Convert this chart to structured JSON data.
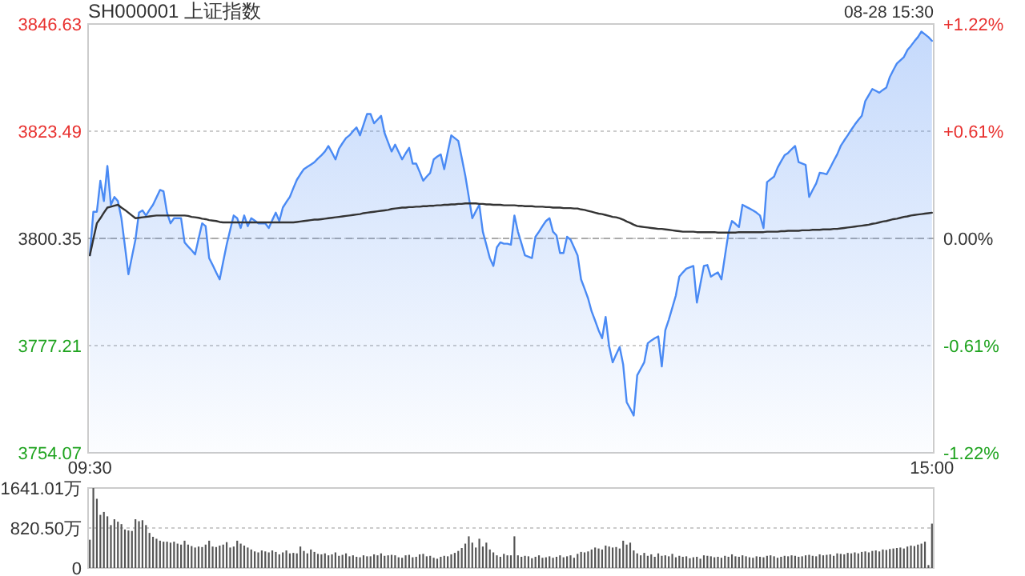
{
  "chart_data": [
    {
      "type": "area",
      "title": "SH000001 上证指数",
      "subtitle": "08-28 15:30",
      "categories": [
        "09:30",
        null,
        null,
        null,
        null,
        null,
        null,
        null,
        null,
        null,
        null,
        null,
        null,
        null,
        null,
        null,
        null,
        null,
        null,
        null,
        null,
        null,
        null,
        null,
        null,
        null,
        null,
        null,
        null,
        null,
        null,
        null,
        null,
        null,
        null,
        null,
        null,
        null,
        null,
        null,
        null,
        null,
        null,
        null,
        null,
        null,
        null,
        null,
        null,
        null,
        null,
        null,
        null,
        null,
        null,
        null,
        null,
        null,
        null,
        null,
        null,
        null,
        null,
        null,
        null,
        null,
        null,
        null,
        null,
        null,
        null,
        null,
        null,
        null,
        null,
        null,
        null,
        null,
        null,
        null,
        null,
        null,
        null,
        null,
        null,
        null,
        null,
        null,
        null,
        null,
        null,
        null,
        null,
        null,
        null,
        null,
        null,
        null,
        null,
        null,
        null,
        null,
        null,
        null,
        null,
        null,
        null,
        null,
        null,
        null,
        null,
        null,
        null,
        null,
        null,
        null,
        null,
        null,
        null,
        null,
        null,
        null,
        null,
        null,
        null,
        null,
        null,
        null,
        null,
        null,
        null,
        null,
        null,
        null,
        null,
        null,
        null,
        null,
        null,
        null,
        null,
        null,
        null,
        null,
        null,
        null,
        null,
        null,
        null,
        null,
        null,
        null,
        null,
        null,
        null,
        null,
        null,
        null,
        null,
        null,
        null,
        null,
        null,
        null,
        null,
        null,
        null,
        null,
        null,
        null,
        null,
        null,
        null,
        null,
        null,
        null,
        null,
        null,
        null,
        null,
        null,
        null,
        null,
        null,
        null,
        null,
        null,
        null,
        null,
        null,
        null,
        null,
        null,
        null,
        null,
        null,
        null,
        null,
        null,
        null,
        null,
        null,
        null,
        null,
        null,
        null,
        null,
        null,
        null,
        null,
        null,
        null,
        null,
        null,
        null,
        null,
        null,
        null,
        null,
        null,
        null,
        null,
        null,
        null,
        null,
        null,
        null,
        null,
        null,
        null,
        null,
        null,
        null,
        null,
        null,
        null,
        null,
        null,
        null,
        null,
        "15:00"
      ],
      "ylim": [
        3754.07,
        3846.63
      ],
      "yticks": [
        3754.07,
        3777.21,
        3800.35,
        3823.49,
        3846.63
      ],
      "y2lim": [
        -1.22,
        1.22
      ],
      "y2ticks": [
        {
          "value": -1.22,
          "label": "-1.22%"
        },
        {
          "value": -0.61,
          "label": "-0.61%"
        },
        {
          "value": 0,
          "label": "0.00%"
        },
        {
          "value": 0.61,
          "label": "+0.61%"
        },
        {
          "value": 1.22,
          "label": "+1.22%"
        }
      ],
      "grid": "y",
      "ref_lines": [
        {
          "axis": "y",
          "value": 3800.35,
          "color": "#aaaaaa",
          "line_style": "dashed"
        }
      ],
      "series": [
        {
          "color": "#4a8af4",
          "values": [
            3796.7,
            3806.1,
            3806.1,
            3812.8,
            3808.4,
            3816.0,
            3807.6,
            3809.3,
            3808.4,
            3804.7,
            3798.7,
            3792.6,
            3796.4,
            3800.1,
            3805.9,
            3806.4,
            3805.3,
            3806.5,
            3807.6,
            3809.2,
            3810.8,
            3810.5,
            3805.9,
            3803.6,
            3804.7,
            3804.7,
            3804.7,
            3799.5,
            3798.6,
            3797.8,
            3796.9,
            3800.3,
            3803.6,
            3803.0,
            3796.1,
            3794.6,
            3793.0,
            3791.5,
            3795.3,
            3799.0,
            3802.2,
            3805.3,
            3804.7,
            3802.6,
            3805.3,
            3803.0,
            3804.7,
            3804.2,
            3803.6,
            3803.6,
            3803.6,
            3802.6,
            3804.3,
            3805.9,
            3804.1,
            3807.0,
            3808.2,
            3809.3,
            3811.2,
            3813.0,
            3814.2,
            3815.3,
            3815.8,
            3816.3,
            3816.8,
            3817.6,
            3818.3,
            3819.1,
            3820.3,
            3818.9,
            3817.4,
            3819.7,
            3820.9,
            3822.0,
            3822.6,
            3823.5,
            3824.3,
            3822.6,
            3824.9,
            3827.2,
            3827.2,
            3825.2,
            3826.0,
            3826.8,
            3823.1,
            3821.1,
            3819.1,
            3820.6,
            3819.0,
            3817.4,
            3818.7,
            3819.9,
            3816.5,
            3816.5,
            3814.7,
            3812.8,
            3813.7,
            3814.5,
            3817.4,
            3818.0,
            3818.5,
            3815.3,
            3819.0,
            3822.6,
            3822.0,
            3821.4,
            3817.7,
            3813.9,
            3809.3,
            3804.7,
            3806.2,
            3807.6,
            3801.8,
            3799.0,
            3796.1,
            3794.4,
            3798.4,
            3799.5,
            3799.2,
            3799.2,
            3799.0,
            3805.3,
            3801.8,
            3799.3,
            3796.7,
            3796.4,
            3796.1,
            3800.7,
            3801.8,
            3803.0,
            3804.1,
            3804.7,
            3801.8,
            3801.0,
            3797.2,
            3797.2,
            3800.7,
            3800.1,
            3798.4,
            3796.7,
            3791.5,
            3789.5,
            3787.4,
            3784.6,
            3782.6,
            3780.5,
            3778.8,
            3783.4,
            3777.1,
            3773.6,
            3775.3,
            3776.9,
            3773.1,
            3765.0,
            3763.6,
            3762.1,
            3770.8,
            3772.2,
            3773.6,
            3777.7,
            3778.3,
            3778.8,
            3779.2,
            3772.7,
            3780.5,
            3782.8,
            3785.4,
            3788.0,
            3792.1,
            3793.0,
            3793.8,
            3794.1,
            3794.4,
            3786.5,
            3790.5,
            3794.4,
            3794.6,
            3792.1,
            3792.6,
            3793.0,
            3791.5,
            3796.5,
            3801.5,
            3804.1,
            3803.5,
            3802.8,
            3807.6,
            3807.2,
            3806.8,
            3806.4,
            3805.9,
            3805.3,
            3802.6,
            3812.5,
            3813.1,
            3813.7,
            3815.6,
            3817.0,
            3818.3,
            3818.8,
            3819.6,
            3820.3,
            3816.8,
            3816.5,
            3816.2,
            3809.3,
            3810.8,
            3812.2,
            3814.5,
            3814.4,
            3814.2,
            3815.6,
            3817.1,
            3818.5,
            3820.3,
            3821.5,
            3822.6,
            3823.8,
            3824.9,
            3825.9,
            3826.8,
            3830.0,
            3831.3,
            3832.6,
            3832.2,
            3831.8,
            3832.4,
            3832.9,
            3835.2,
            3836.7,
            3838.1,
            3838.8,
            3839.5,
            3841.0,
            3841.9,
            3842.9,
            3843.8,
            3845.0,
            3844.4,
            3843.8,
            3843.0
          ]
        },
        {
          "type": "line",
          "color": "#333333",
          "values": [
            3796.7,
            3800.2,
            3803.6,
            3804.7,
            3805.9,
            3807.0,
            3807.2,
            3807.4,
            3807.6,
            3807.0,
            3806.5,
            3805.9,
            3805.3,
            3804.7,
            3804.8,
            3804.9,
            3805.0,
            3805.1,
            3805.2,
            3805.3,
            3805.3,
            3805.3,
            3805.3,
            3805.3,
            3805.3,
            3805.3,
            3805.3,
            3805.3,
            3805.2,
            3805.0,
            3804.9,
            3804.8,
            3804.6,
            3804.5,
            3804.3,
            3804.2,
            3804.1,
            3803.9,
            3803.8,
            3803.8,
            3803.8,
            3803.8,
            3803.8,
            3803.8,
            3803.8,
            3803.8,
            3803.8,
            3803.8,
            3803.8,
            3803.8,
            3803.8,
            3803.8,
            3803.8,
            3803.8,
            3803.8,
            3803.8,
            3803.8,
            3803.8,
            3803.8,
            3803.9,
            3804.0,
            3804.1,
            3804.2,
            3804.3,
            3804.4,
            3804.4,
            3804.5,
            3804.6,
            3804.7,
            3804.8,
            3804.9,
            3805.0,
            3805.1,
            3805.2,
            3805.3,
            3805.4,
            3805.5,
            3805.6,
            3805.8,
            3805.9,
            3806.0,
            3806.1,
            3806.2,
            3806.3,
            3806.4,
            3806.5,
            3806.7,
            3806.8,
            3806.9,
            3807.0,
            3807.0,
            3807.1,
            3807.1,
            3807.2,
            3807.2,
            3807.3,
            3807.3,
            3807.4,
            3807.4,
            3807.5,
            3807.5,
            3807.6,
            3807.6,
            3807.7,
            3807.7,
            3807.8,
            3807.8,
            3807.9,
            3807.9,
            3807.9,
            3807.9,
            3807.8,
            3807.8,
            3807.7,
            3807.7,
            3807.6,
            3807.6,
            3807.6,
            3807.5,
            3807.5,
            3807.5,
            3807.5,
            3807.4,
            3807.4,
            3807.3,
            3807.3,
            3807.3,
            3807.2,
            3807.2,
            3807.2,
            3807.1,
            3807.1,
            3807.0,
            3807.0,
            3807.0,
            3806.9,
            3806.9,
            3806.9,
            3806.8,
            3806.8,
            3806.6,
            3806.5,
            3806.3,
            3806.1,
            3805.9,
            3805.7,
            3805.6,
            3805.4,
            3805.2,
            3805.0,
            3804.9,
            3804.7,
            3804.4,
            3804.0,
            3803.7,
            3803.3,
            3803.0,
            3802.9,
            3802.8,
            3802.7,
            3802.6,
            3802.5,
            3802.4,
            3802.4,
            3802.3,
            3802.2,
            3802.1,
            3802.0,
            3801.9,
            3801.8,
            3801.8,
            3801.8,
            3801.8,
            3801.7,
            3801.7,
            3801.7,
            3801.7,
            3801.7,
            3801.7,
            3801.6,
            3801.6,
            3801.6,
            3801.6,
            3801.6,
            3801.6,
            3801.7,
            3801.7,
            3801.7,
            3801.7,
            3801.7,
            3801.7,
            3801.7,
            3801.7,
            3801.8,
            3801.8,
            3801.8,
            3801.8,
            3801.9,
            3801.9,
            3802.0,
            3802.0,
            3802.0,
            3802.0,
            3802.1,
            3802.1,
            3802.1,
            3802.2,
            3802.2,
            3802.2,
            3802.3,
            3802.3,
            3802.3,
            3802.4,
            3802.4,
            3802.5,
            3802.6,
            3802.7,
            3802.8,
            3802.9,
            3803.0,
            3803.1,
            3803.2,
            3803.3,
            3803.5,
            3803.6,
            3803.8,
            3804.0,
            3804.1,
            3804.3,
            3804.5,
            3804.6,
            3804.8,
            3805.0,
            3805.1,
            3805.3,
            3805.4,
            3805.5,
            3805.6,
            3805.7,
            3805.8,
            3805.9
          ]
        }
      ]
    },
    {
      "type": "bar",
      "ylim": [
        0,
        1641.01
      ],
      "yticks": [
        0,
        {
          "value": 820.5,
          "label": "820.50万"
        },
        {
          "value": 1641.01,
          "label": "1641.01万"
        }
      ],
      "grid": "y",
      "tick_labels": "y",
      "categories": [
        null,
        null,
        null,
        null,
        null,
        null,
        null,
        null,
        null,
        null,
        null,
        null,
        null,
        null,
        null,
        null,
        null,
        null,
        null,
        null,
        null,
        null,
        null,
        null,
        null,
        null,
        null,
        null,
        null,
        null,
        null,
        null,
        null,
        null,
        null,
        null,
        null,
        null,
        null,
        null,
        null,
        null,
        null,
        null,
        null,
        null,
        null,
        null,
        null,
        null,
        null,
        null,
        null,
        null,
        null,
        null,
        null,
        null,
        null,
        null,
        null,
        null,
        null,
        null,
        null,
        null,
        null,
        null,
        null,
        null,
        null,
        null,
        null,
        null,
        null,
        null,
        null,
        null,
        null,
        null,
        null,
        null,
        null,
        null,
        null,
        null,
        null,
        null,
        null,
        null,
        null,
        null,
        null,
        null,
        null,
        null,
        null,
        null,
        null,
        null,
        null,
        null,
        null,
        null,
        null,
        null,
        null,
        null,
        null,
        null,
        null,
        null,
        null,
        null,
        null,
        null,
        null,
        null,
        null,
        null,
        null,
        null,
        null,
        null,
        null,
        null,
        null,
        null,
        null,
        null,
        null,
        null,
        null,
        null,
        null,
        null,
        null,
        null,
        null,
        null,
        null,
        null,
        null,
        null,
        null,
        null,
        null,
        null,
        null,
        null,
        null,
        null,
        null,
        null,
        null,
        null,
        null,
        null,
        null,
        null,
        null,
        null,
        null,
        null,
        null,
        null,
        null,
        null,
        null,
        null,
        null,
        null,
        null,
        null,
        null,
        null,
        null,
        null,
        null,
        null,
        null,
        null,
        null,
        null,
        null,
        null,
        null,
        null,
        null,
        null,
        null,
        null,
        null,
        null,
        null,
        null,
        null,
        null,
        null,
        null,
        null,
        null,
        null,
        null,
        null,
        null,
        null,
        null,
        null,
        null,
        null,
        null,
        null,
        null,
        null,
        null,
        null,
        null,
        null,
        null,
        null,
        null,
        null,
        null,
        null,
        null,
        null,
        null,
        null,
        null,
        null,
        null,
        null,
        null,
        null,
        null,
        null,
        null,
        null,
        null,
        null
      ],
      "series": [
        {
          "color": "#555555",
          "values": [
            580,
            1640,
            1420,
            1090,
            1150,
            1060,
            880,
            1000,
            950,
            900,
            790,
            770,
            760,
            1000,
            960,
            980,
            880,
            720,
            640,
            600,
            560,
            540,
            540,
            520,
            540,
            500,
            480,
            560,
            480,
            450,
            420,
            440,
            430,
            480,
            560,
            440,
            430,
            460,
            480,
            530,
            420,
            440,
            560,
            500,
            460,
            420,
            380,
            340,
            320,
            360,
            340,
            320,
            360,
            330,
            280,
            320,
            360,
            300,
            310,
            300,
            440,
            350,
            300,
            380,
            330,
            290,
            280,
            300,
            260,
            280,
            320,
            250,
            270,
            300,
            240,
            260,
            230,
            220,
            260,
            240,
            240,
            280,
            260,
            300,
            250,
            260,
            270,
            260,
            220,
            210,
            260,
            270,
            220,
            230,
            280,
            290,
            240,
            250,
            210,
            190,
            230,
            250,
            240,
            280,
            310,
            350,
            410,
            500,
            650,
            520,
            420,
            600,
            440,
            520,
            380,
            320,
            260,
            230,
            290,
            260,
            260,
            650,
            260,
            230,
            250,
            240,
            200,
            230,
            260,
            210,
            220,
            240,
            210,
            230,
            260,
            220,
            240,
            260,
            210,
            290,
            330,
            320,
            340,
            380,
            420,
            400,
            380,
            460,
            440,
            420,
            430,
            400,
            560,
            480,
            520,
            360,
            300,
            260,
            310,
            250,
            280,
            230,
            300,
            250,
            260,
            240,
            290,
            220,
            250,
            230,
            240,
            200,
            220,
            230,
            190,
            260,
            250,
            240,
            220,
            230,
            210,
            250,
            230,
            280,
            240,
            230,
            260,
            240,
            220,
            210,
            240,
            230,
            220,
            250,
            260,
            240,
            210,
            230,
            250,
            240,
            260,
            250,
            230,
            240,
            260,
            270,
            250,
            240,
            280,
            260,
            270,
            280,
            250,
            300,
            290,
            280,
            310,
            300,
            320,
            300,
            330,
            340,
            320,
            350,
            360,
            340,
            380,
            370,
            390,
            400,
            410,
            420,
            400,
            440,
            460,
            450,
            480,
            500,
            540,
            60,
            910
          ]
        }
      ]
    }
  ]
}
